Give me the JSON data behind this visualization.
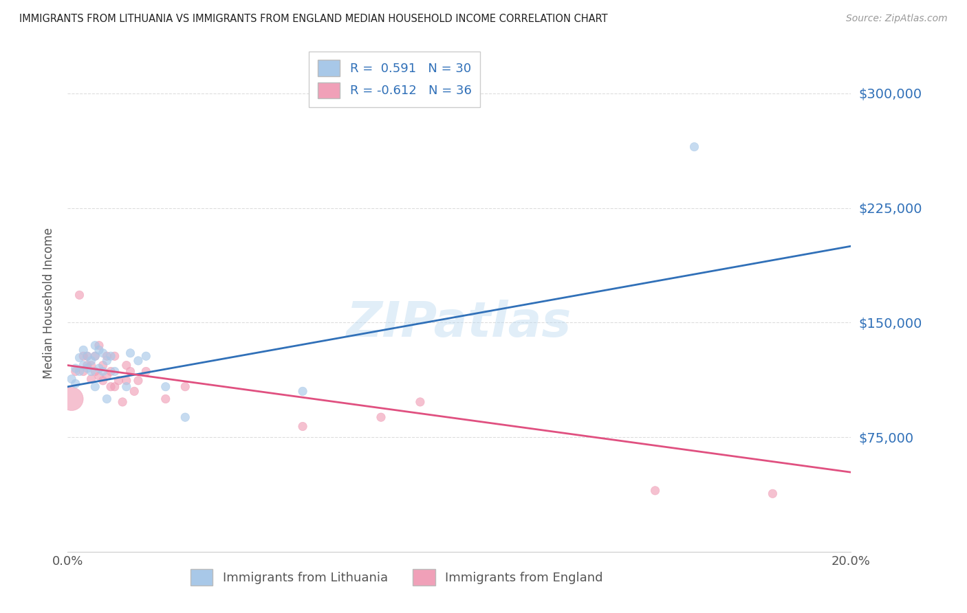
{
  "title": "IMMIGRANTS FROM LITHUANIA VS IMMIGRANTS FROM ENGLAND MEDIAN HOUSEHOLD INCOME CORRELATION CHART",
  "source": "Source: ZipAtlas.com",
  "ylabel": "Median Household Income",
  "watermark": "ZIPatlas",
  "xlim": [
    0.0,
    0.2
  ],
  "ylim": [
    0,
    325000
  ],
  "yticks": [
    75000,
    150000,
    225000,
    300000
  ],
  "ytick_labels": [
    "$75,000",
    "$150,000",
    "$225,000",
    "$300,000"
  ],
  "xtick_vals": [
    0.0,
    0.05,
    0.1,
    0.15,
    0.2
  ],
  "xtick_labels": [
    "0.0%",
    "",
    "",
    "",
    "20.0%"
  ],
  "blue_R": "0.591",
  "blue_N": "30",
  "pink_R": "-0.612",
  "pink_N": "36",
  "blue_color": "#a8c8e8",
  "blue_line": "#3070b8",
  "pink_color": "#f0a0b8",
  "pink_line": "#e05080",
  "label_blue": "Immigrants from Lithuania",
  "label_pink": "Immigrants from England",
  "blue_line_x": [
    0.0,
    0.2
  ],
  "blue_line_y": [
    108000,
    200000
  ],
  "pink_line_x": [
    0.0,
    0.2
  ],
  "pink_line_y": [
    122000,
    52000
  ],
  "blue_x": [
    0.001,
    0.002,
    0.002,
    0.003,
    0.003,
    0.004,
    0.004,
    0.005,
    0.005,
    0.006,
    0.006,
    0.007,
    0.007,
    0.007,
    0.008,
    0.008,
    0.009,
    0.009,
    0.01,
    0.01,
    0.011,
    0.012,
    0.015,
    0.016,
    0.018,
    0.02,
    0.025,
    0.03,
    0.06,
    0.16
  ],
  "blue_y": [
    113000,
    120000,
    110000,
    127000,
    118000,
    132000,
    122000,
    128000,
    120000,
    125000,
    118000,
    135000,
    128000,
    108000,
    132000,
    120000,
    130000,
    118000,
    125000,
    100000,
    128000,
    118000,
    108000,
    130000,
    125000,
    128000,
    108000,
    88000,
    105000,
    265000
  ],
  "blue_sizes": [
    80,
    80,
    80,
    80,
    80,
    80,
    80,
    80,
    80,
    80,
    80,
    80,
    80,
    80,
    80,
    80,
    80,
    80,
    80,
    80,
    80,
    80,
    80,
    80,
    80,
    80,
    80,
    80,
    80,
    80
  ],
  "pink_x": [
    0.001,
    0.002,
    0.003,
    0.004,
    0.004,
    0.005,
    0.005,
    0.006,
    0.006,
    0.007,
    0.007,
    0.008,
    0.008,
    0.009,
    0.009,
    0.01,
    0.01,
    0.011,
    0.011,
    0.012,
    0.012,
    0.013,
    0.014,
    0.015,
    0.015,
    0.016,
    0.017,
    0.018,
    0.02,
    0.025,
    0.03,
    0.06,
    0.08,
    0.09,
    0.15,
    0.18
  ],
  "pink_y": [
    100000,
    118000,
    168000,
    118000,
    128000,
    122000,
    128000,
    113000,
    122000,
    118000,
    128000,
    135000,
    115000,
    112000,
    122000,
    128000,
    115000,
    108000,
    118000,
    108000,
    128000,
    112000,
    98000,
    122000,
    112000,
    118000,
    105000,
    112000,
    118000,
    100000,
    108000,
    82000,
    88000,
    98000,
    40000,
    38000
  ],
  "pink_sizes": [
    600,
    80,
    80,
    80,
    80,
    80,
    80,
    80,
    80,
    80,
    80,
    80,
    80,
    80,
    80,
    80,
    80,
    80,
    80,
    80,
    80,
    80,
    80,
    80,
    80,
    80,
    80,
    80,
    80,
    80,
    80,
    80,
    80,
    80,
    80,
    80
  ]
}
